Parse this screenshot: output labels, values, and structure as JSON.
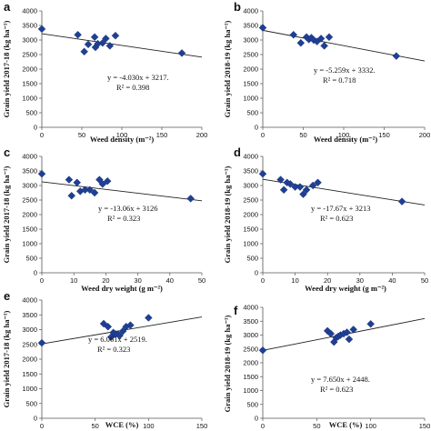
{
  "chart_data": [
    {
      "type": "scatter",
      "panel": "a",
      "xlabel": "Weed density (m⁻²)",
      "ylabel": "Grain yield 2017-18 (kg ha⁻¹)",
      "xlim": [
        0,
        200
      ],
      "ylim": [
        0,
        4000
      ],
      "xticks": [
        "0",
        "50",
        "100",
        "150",
        "200"
      ],
      "yticks": [
        "0",
        "500",
        "1000",
        "1500",
        "2000",
        "2500",
        "3000",
        "3500",
        "4000"
      ],
      "equation": "y = -4.030x + 3217.",
      "r2": "R² = 0.398",
      "trend": {
        "slope": -4.03,
        "intercept": 3217
      },
      "x": [
        0,
        45,
        53,
        58,
        66,
        67,
        70,
        76,
        80,
        85,
        92,
        175
      ],
      "y": [
        3380,
        3180,
        2600,
        2850,
        3100,
        2750,
        2870,
        2900,
        3050,
        2800,
        3150,
        2550
      ]
    },
    {
      "type": "scatter",
      "panel": "b",
      "xlabel": "Weed density (m⁻²)",
      "ylabel": "Grain yield 2018-19 (kg ha⁻¹)",
      "xlim": [
        0,
        200
      ],
      "ylim": [
        0,
        4000
      ],
      "xticks": [
        "0",
        "50",
        "100",
        "150",
        "200"
      ],
      "yticks": [
        "0",
        "500",
        "1000",
        "1500",
        "2000",
        "2500",
        "3000",
        "3500",
        "4000"
      ],
      "equation": "y = -5.259x + 3332.",
      "r2": "R² = 0.718",
      "trend": {
        "slope": -5.259,
        "intercept": 3332
      },
      "x": [
        0,
        38,
        47,
        54,
        57,
        60,
        63,
        67,
        72,
        76,
        82,
        165
      ],
      "y": [
        3420,
        3180,
        2900,
        3100,
        3020,
        3080,
        3000,
        2950,
        3050,
        2800,
        3100,
        2450
      ]
    },
    {
      "type": "scatter",
      "panel": "c",
      "xlabel": "Weed dry weight (g m⁻²)",
      "ylabel": "Grain yield 2017-18 (kg ha⁻¹)",
      "xlim": [
        0,
        50
      ],
      "ylim": [
        0,
        4000
      ],
      "xticks": [
        "0",
        "10",
        "20",
        "30",
        "40",
        "50"
      ],
      "yticks": [
        "0",
        "500",
        "1000",
        "1500",
        "2000",
        "2500",
        "3000",
        "3500",
        "4000"
      ],
      "equation": "y = -13.06x + 3126",
      "r2": "R² = 0.323",
      "trend": {
        "slope": -13.06,
        "intercept": 3126
      },
      "x": [
        0,
        8.5,
        9.3,
        11,
        12,
        13.5,
        15,
        16.5,
        18,
        19,
        20.5,
        46.5
      ],
      "y": [
        3400,
        3200,
        2650,
        3100,
        2800,
        2850,
        2850,
        2750,
        3200,
        3050,
        3150,
        2550
      ]
    },
    {
      "type": "scatter",
      "panel": "d",
      "xlabel": "Weed dry weight (g m⁻²)",
      "ylabel": "Grain yield 2018-19 (kg ha⁻¹)",
      "xlim": [
        0,
        50
      ],
      "ylim": [
        0,
        4000
      ],
      "xticks": [
        "0",
        "10",
        "20",
        "30",
        "40",
        "50"
      ],
      "yticks": [
        "0",
        "500",
        "1000",
        "1500",
        "2000",
        "2500",
        "3000",
        "3500",
        "4000"
      ],
      "equation": "y = -17.67x + 3213",
      "r2": "R² = 0.623",
      "trend": {
        "slope": -17.67,
        "intercept": 3213
      },
      "x": [
        0,
        5.5,
        6.5,
        7.5,
        8.5,
        10,
        11.5,
        12.5,
        13.5,
        15.5,
        17,
        43
      ],
      "y": [
        3400,
        3200,
        2850,
        3100,
        3050,
        2950,
        2950,
        2700,
        2850,
        3000,
        3100,
        2450
      ]
    },
    {
      "type": "scatter",
      "panel": "e",
      "xlabel": "WCE (%)",
      "ylabel": "Grain yield 2017-18 (kg ha⁻¹)",
      "xlim": [
        0,
        150
      ],
      "ylim": [
        0,
        4000
      ],
      "xticks": [
        "0",
        "50",
        "100",
        "150"
      ],
      "yticks": [
        "0",
        "500",
        "1000",
        "1500",
        "2000",
        "2500",
        "3000",
        "3500",
        "4000"
      ],
      "equation": "y = 6.061x + 2519.",
      "r2": "R² = 0.323",
      "trend": {
        "slope": 6.061,
        "intercept": 2519
      },
      "x": [
        0,
        58,
        62,
        65,
        67,
        69,
        71,
        73,
        76,
        79,
        83,
        100
      ],
      "y": [
        2550,
        3200,
        3100,
        2750,
        2900,
        2850,
        2850,
        2800,
        2950,
        3100,
        3150,
        3400
      ]
    },
    {
      "type": "scatter",
      "panel": "f",
      "xlabel": "WCE (%)",
      "ylabel": "Grain yield 2018-19 (kg ha⁻¹)",
      "xlim": [
        0,
        150
      ],
      "ylim": [
        0,
        4000
      ],
      "xticks": [
        "0",
        "50",
        "100",
        "150"
      ],
      "yticks": [
        "0",
        "500",
        "1000",
        "1500",
        "2000",
        "2500",
        "3000",
        "3500",
        "4000"
      ],
      "equation": "y = 7.650x + 2448.",
      "r2": "R² = 0.623",
      "trend": {
        "slope": 7.65,
        "intercept": 2448
      },
      "x": [
        0,
        60,
        63,
        66,
        68,
        70,
        72,
        75,
        78,
        80,
        84,
        100
      ],
      "y": [
        2450,
        3150,
        3050,
        2750,
        2900,
        2950,
        3000,
        3050,
        3100,
        2850,
        3200,
        3400
      ]
    }
  ]
}
